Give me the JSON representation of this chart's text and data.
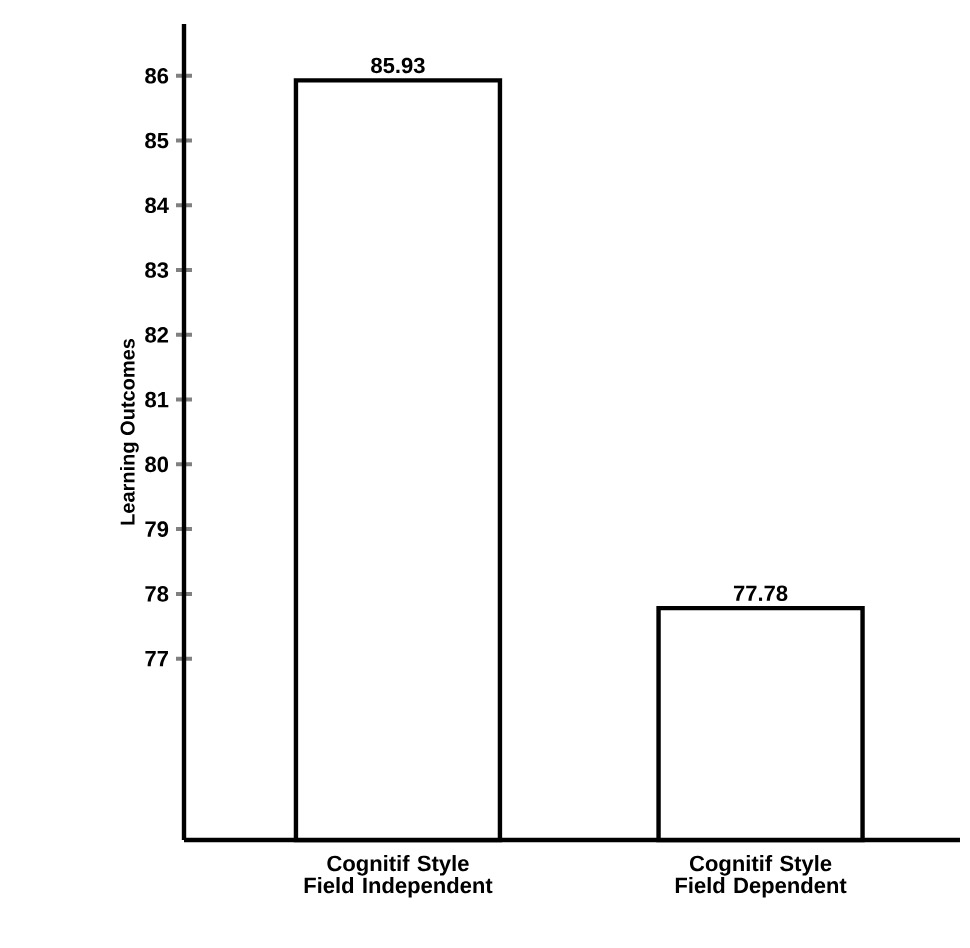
{
  "chart_data": {
    "type": "bar",
    "ylabel": "Learning Outcomes",
    "categories": [
      "Cognitif Style Field Independent",
      "Cognitif Style Field Dependent"
    ],
    "values": [
      85.93,
      77.78
    ],
    "color": "#ffffff",
    "ylim": [
      74.2,
      86.8
    ],
    "yticks": [
      77,
      78,
      79,
      80,
      81,
      82,
      83,
      84,
      85,
      86
    ],
    "data_labels": true,
    "grid": false
  }
}
